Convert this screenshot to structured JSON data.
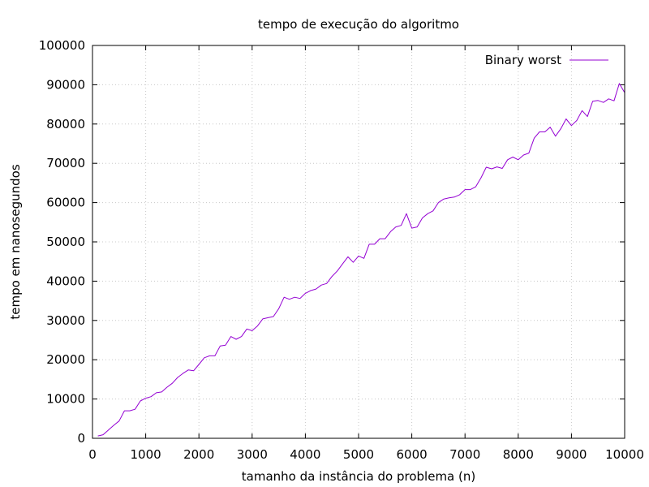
{
  "chart_data": {
    "type": "line",
    "title": "tempo de execução do algoritmo",
    "xlabel": "tamanho da instância do problema (n)",
    "ylabel": "tempo em nanosegundos",
    "xlim": [
      0,
      10000
    ],
    "ylim": [
      0,
      100000
    ],
    "xticks": [
      0,
      1000,
      2000,
      3000,
      4000,
      5000,
      6000,
      7000,
      8000,
      9000,
      10000
    ],
    "yticks": [
      0,
      10000,
      20000,
      30000,
      40000,
      50000,
      60000,
      70000,
      80000,
      90000,
      100000
    ],
    "grid": true,
    "legend_position": "top-right",
    "series": [
      {
        "name": "Binary worst",
        "color": "#9400d3",
        "x": [
          100,
          200,
          300,
          400,
          500,
          600,
          700,
          800,
          900,
          1000,
          1100,
          1200,
          1300,
          1400,
          1500,
          1600,
          1700,
          1800,
          1900,
          2000,
          2100,
          2200,
          2300,
          2400,
          2500,
          2600,
          2700,
          2800,
          2900,
          3000,
          3100,
          3200,
          3300,
          3400,
          3500,
          3600,
          3700,
          3800,
          3900,
          4000,
          4100,
          4200,
          4300,
          4400,
          4500,
          4600,
          4700,
          4800,
          4900,
          5000,
          5100,
          5200,
          5300,
          5400,
          5500,
          5600,
          5700,
          5800,
          5900,
          6000,
          6100,
          6200,
          6300,
          6400,
          6500,
          6600,
          6700,
          6800,
          6900,
          7000,
          7100,
          7200,
          7300,
          7400,
          7500,
          7600,
          7700,
          7800,
          7900,
          8000,
          8100,
          8200,
          8300,
          8400,
          8500,
          8600,
          8700,
          8800,
          8900,
          9000,
          9100,
          9200,
          9300,
          9400,
          9500,
          9600,
          9700,
          9800,
          9900,
          10000
        ],
        "y": [
          600,
          900,
          2100,
          3300,
          4400,
          7000,
          7000,
          7400,
          9500,
          10200,
          10600,
          11600,
          11800,
          13000,
          14000,
          15500,
          16500,
          17400,
          17200,
          18800,
          20500,
          21000,
          21000,
          23500,
          23700,
          25900,
          25200,
          25900,
          27800,
          27400,
          28600,
          30400,
          30700,
          31000,
          33000,
          35900,
          35400,
          35900,
          35600,
          36900,
          37600,
          38000,
          39000,
          39400,
          41200,
          42600,
          44400,
          46200,
          44800,
          46400,
          45800,
          49400,
          49400,
          50800,
          50800,
          52600,
          53800,
          54200,
          57200,
          53500,
          53800,
          56100,
          57200,
          57900,
          60000,
          60900,
          61200,
          61400,
          62000,
          63300,
          63300,
          64000,
          66300,
          69000,
          68600,
          69100,
          68700,
          70900,
          71600,
          70900,
          72100,
          72600,
          76400,
          78000,
          78000,
          79200,
          76900,
          78800,
          81300,
          79600,
          80900,
          83400,
          81900,
          85800,
          86000,
          85500,
          86400,
          85900,
          90300,
          88000
        ]
      }
    ]
  }
}
